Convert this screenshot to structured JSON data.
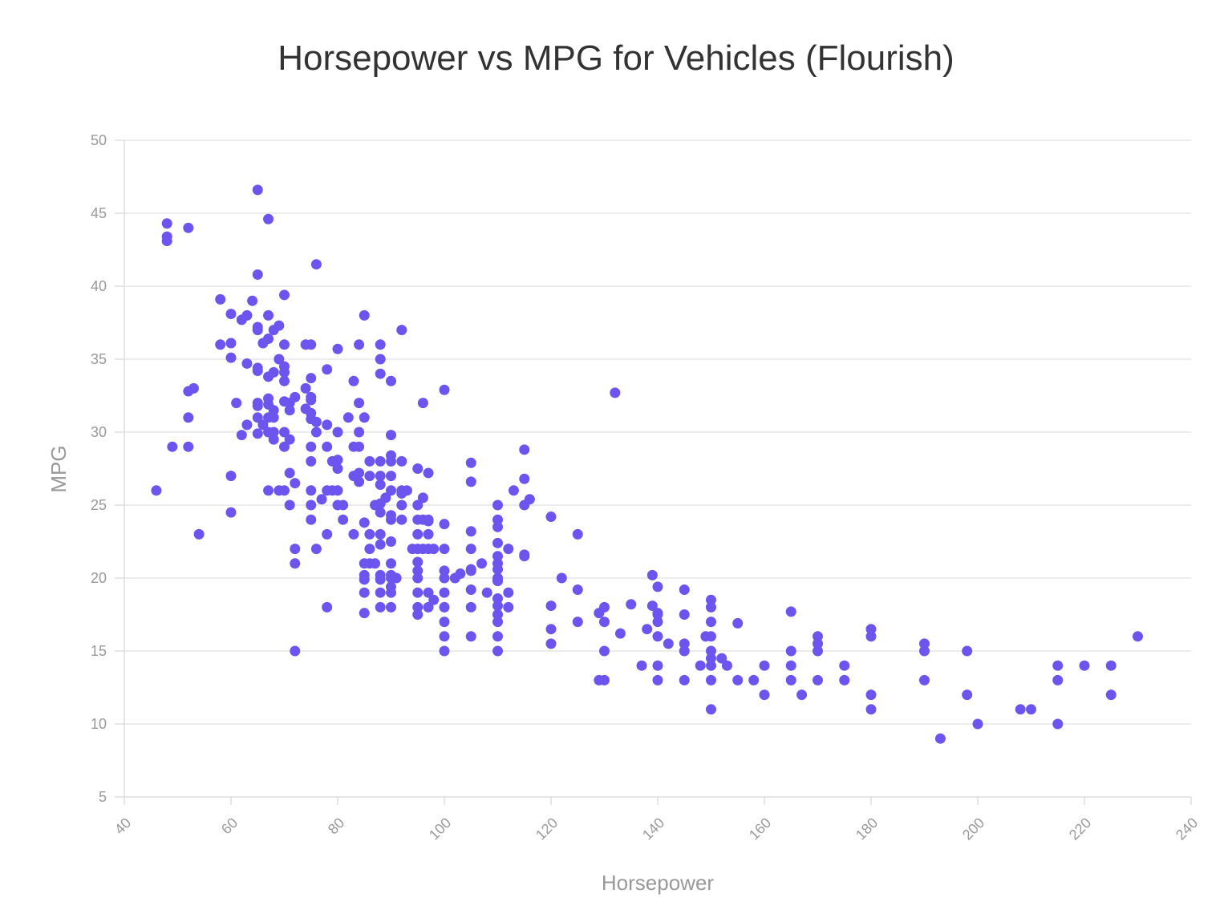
{
  "chart_data": {
    "type": "scatter",
    "title": "Horsepower vs MPG for Vehicles (Flourish)",
    "xlabel": "Horsepower",
    "ylabel": "MPG",
    "xlim": [
      40,
      240
    ],
    "ylim": [
      5,
      50
    ],
    "x_ticks": [
      "40",
      "60",
      "80",
      "100",
      "120",
      "140",
      "160",
      "180",
      "200",
      "220",
      "240"
    ],
    "y_ticks": [
      "5",
      "10",
      "15",
      "20",
      "25",
      "30",
      "35",
      "40",
      "45",
      "50"
    ],
    "grid": "horizontal",
    "marker_color": "#6c55ee",
    "series": [
      {
        "points": [
          [
            46,
            26
          ],
          [
            48,
            44.3
          ],
          [
            48,
            43.4
          ],
          [
            48,
            43.1
          ],
          [
            49,
            29
          ],
          [
            52,
            44
          ],
          [
            52,
            32.8
          ],
          [
            52,
            31
          ],
          [
            52,
            29
          ],
          [
            53,
            33
          ],
          [
            54,
            23
          ],
          [
            58,
            39.1
          ],
          [
            58,
            36
          ],
          [
            60,
            38.1
          ],
          [
            60,
            36.1
          ],
          [
            60,
            35.1
          ],
          [
            60,
            27
          ],
          [
            60,
            24.5
          ],
          [
            61,
            32
          ],
          [
            62,
            37.7
          ],
          [
            62,
            29.8
          ],
          [
            63,
            38
          ],
          [
            63,
            34.7
          ],
          [
            63,
            30.5
          ],
          [
            64,
            39
          ],
          [
            65,
            46.6
          ],
          [
            65,
            40.8
          ],
          [
            65,
            37.2
          ],
          [
            65,
            37
          ],
          [
            65,
            34.4
          ],
          [
            65,
            34.2
          ],
          [
            65,
            32
          ],
          [
            65,
            31.8
          ],
          [
            65,
            31
          ],
          [
            65,
            29.9
          ],
          [
            66,
            36.1
          ],
          [
            66,
            30.5
          ],
          [
            67,
            44.6
          ],
          [
            67,
            38
          ],
          [
            67,
            36.4
          ],
          [
            67,
            33.8
          ],
          [
            67,
            32.3
          ],
          [
            67,
            31.9
          ],
          [
            67,
            31
          ],
          [
            67,
            30
          ],
          [
            67,
            26
          ],
          [
            68,
            37
          ],
          [
            68,
            34.1
          ],
          [
            68,
            31.5
          ],
          [
            68,
            31
          ],
          [
            68,
            30
          ],
          [
            68,
            29.5
          ],
          [
            69,
            37.3
          ],
          [
            69,
            35
          ],
          [
            69,
            26
          ],
          [
            70,
            39.4
          ],
          [
            70,
            36
          ],
          [
            70,
            34.5
          ],
          [
            70,
            34.1
          ],
          [
            70,
            33.5
          ],
          [
            70,
            32.1
          ],
          [
            70,
            30
          ],
          [
            70,
            29
          ],
          [
            70,
            26
          ],
          [
            71,
            32
          ],
          [
            71,
            31.5
          ],
          [
            71,
            29.5
          ],
          [
            71,
            27.2
          ],
          [
            71,
            25
          ],
          [
            72,
            32.4
          ],
          [
            72,
            26.5
          ],
          [
            72,
            22
          ],
          [
            72,
            21
          ],
          [
            72,
            15
          ],
          [
            74,
            36
          ],
          [
            74,
            33
          ],
          [
            74,
            31.6
          ],
          [
            75,
            36
          ],
          [
            75,
            33.7
          ],
          [
            75,
            32.4
          ],
          [
            75,
            32.2
          ],
          [
            75,
            31.3
          ],
          [
            75,
            30.9
          ],
          [
            75,
            29
          ],
          [
            75,
            28
          ],
          [
            75,
            26
          ],
          [
            75,
            25
          ],
          [
            75,
            24
          ],
          [
            76,
            41.5
          ],
          [
            76,
            30.7
          ],
          [
            76,
            30
          ],
          [
            76,
            22
          ],
          [
            77,
            25.4
          ],
          [
            78,
            34.3
          ],
          [
            78,
            30.5
          ],
          [
            78,
            29
          ],
          [
            78,
            26
          ],
          [
            78,
            23
          ],
          [
            78,
            18
          ],
          [
            79,
            28
          ],
          [
            79,
            26
          ],
          [
            80,
            35.7
          ],
          [
            80,
            30
          ],
          [
            80,
            28.1
          ],
          [
            80,
            27.5
          ],
          [
            80,
            26
          ],
          [
            80,
            25
          ],
          [
            81,
            25
          ],
          [
            81,
            24
          ],
          [
            82,
            31
          ],
          [
            83,
            33.5
          ],
          [
            83,
            29
          ],
          [
            83,
            27
          ],
          [
            83,
            23
          ],
          [
            84,
            36
          ],
          [
            84,
            32
          ],
          [
            84,
            30
          ],
          [
            84,
            29
          ],
          [
            84,
            27.2
          ],
          [
            84,
            26.6
          ],
          [
            85,
            38
          ],
          [
            85,
            31
          ],
          [
            85,
            23.8
          ],
          [
            85,
            21
          ],
          [
            85,
            20.2
          ],
          [
            85,
            19.9
          ],
          [
            85,
            19
          ],
          [
            85,
            17.6
          ],
          [
            86,
            28
          ],
          [
            86,
            27
          ],
          [
            86,
            23
          ],
          [
            86,
            22
          ],
          [
            86,
            21
          ],
          [
            87,
            25
          ],
          [
            87,
            21
          ],
          [
            88,
            36
          ],
          [
            88,
            35
          ],
          [
            88,
            34
          ],
          [
            88,
            28
          ],
          [
            88,
            27
          ],
          [
            88,
            26.4
          ],
          [
            88,
            25.1
          ],
          [
            88,
            24.5
          ],
          [
            88,
            23
          ],
          [
            88,
            22.3
          ],
          [
            88,
            20.2
          ],
          [
            88,
            19.9
          ],
          [
            88,
            19
          ],
          [
            88,
            18
          ],
          [
            89,
            25.5
          ],
          [
            90,
            33.5
          ],
          [
            90,
            29.8
          ],
          [
            90,
            28.4
          ],
          [
            90,
            28
          ],
          [
            90,
            27
          ],
          [
            90,
            26
          ],
          [
            90,
            24.3
          ],
          [
            90,
            24
          ],
          [
            90,
            22.5
          ],
          [
            90,
            21
          ],
          [
            90,
            20.2
          ],
          [
            90,
            20
          ],
          [
            90,
            19.4
          ],
          [
            90,
            19
          ],
          [
            90,
            18
          ],
          [
            91,
            20
          ],
          [
            92,
            37
          ],
          [
            92,
            28
          ],
          [
            92,
            26
          ],
          [
            92,
            25.8
          ],
          [
            92,
            25
          ],
          [
            92,
            24
          ],
          [
            93,
            26
          ],
          [
            94,
            22
          ],
          [
            95,
            27.5
          ],
          [
            95,
            25
          ],
          [
            95,
            24
          ],
          [
            95,
            23
          ],
          [
            95,
            22
          ],
          [
            95,
            21.1
          ],
          [
            95,
            20.5
          ],
          [
            95,
            20
          ],
          [
            95,
            19
          ],
          [
            95,
            18
          ],
          [
            95,
            17.5
          ],
          [
            96,
            32
          ],
          [
            96,
            25.5
          ],
          [
            96,
            24
          ],
          [
            96,
            22
          ],
          [
            97,
            27.2
          ],
          [
            97,
            24
          ],
          [
            97,
            23.9
          ],
          [
            97,
            23
          ],
          [
            97,
            22
          ],
          [
            97,
            19
          ],
          [
            97,
            18
          ],
          [
            98,
            22
          ],
          [
            98,
            18.5
          ],
          [
            100,
            32.9
          ],
          [
            100,
            23.7
          ],
          [
            100,
            22
          ],
          [
            100,
            20.5
          ],
          [
            100,
            20
          ],
          [
            100,
            19
          ],
          [
            100,
            18
          ],
          [
            100,
            17
          ],
          [
            100,
            16
          ],
          [
            100,
            15
          ],
          [
            102,
            20
          ],
          [
            103,
            20.3
          ],
          [
            105,
            27.9
          ],
          [
            105,
            26.6
          ],
          [
            105,
            23.2
          ],
          [
            105,
            22
          ],
          [
            105,
            20.6
          ],
          [
            105,
            20.5
          ],
          [
            105,
            19.2
          ],
          [
            105,
            18
          ],
          [
            105,
            16
          ],
          [
            107,
            21
          ],
          [
            108,
            19
          ],
          [
            110,
            25
          ],
          [
            110,
            24
          ],
          [
            110,
            23.5
          ],
          [
            110,
            22.4
          ],
          [
            110,
            21.5
          ],
          [
            110,
            21
          ],
          [
            110,
            20.6
          ],
          [
            110,
            20
          ],
          [
            110,
            19.8
          ],
          [
            110,
            18.6
          ],
          [
            110,
            18.1
          ],
          [
            110,
            17.5
          ],
          [
            110,
            17
          ],
          [
            110,
            16
          ],
          [
            110,
            15
          ],
          [
            112,
            22
          ],
          [
            112,
            19
          ],
          [
            112,
            18
          ],
          [
            113,
            26
          ],
          [
            115,
            28.8
          ],
          [
            115,
            26.8
          ],
          [
            115,
            25
          ],
          [
            115,
            21.6
          ],
          [
            115,
            21.5
          ],
          [
            116,
            25.4
          ],
          [
            120,
            24.2
          ],
          [
            120,
            18.1
          ],
          [
            120,
            16.5
          ],
          [
            120,
            15.5
          ],
          [
            122,
            20
          ],
          [
            125,
            23
          ],
          [
            125,
            19.2
          ],
          [
            125,
            17
          ],
          [
            129,
            17.6
          ],
          [
            129,
            13
          ],
          [
            130,
            18
          ],
          [
            130,
            17
          ],
          [
            130,
            15
          ],
          [
            130,
            13
          ],
          [
            132,
            32.7
          ],
          [
            133,
            16.2
          ],
          [
            135,
            18.2
          ],
          [
            137,
            14
          ],
          [
            138,
            16.5
          ],
          [
            139,
            20.2
          ],
          [
            139,
            18.1
          ],
          [
            140,
            19.4
          ],
          [
            140,
            17.6
          ],
          [
            140,
            17.5
          ],
          [
            140,
            17
          ],
          [
            140,
            16
          ],
          [
            140,
            14
          ],
          [
            140,
            13
          ],
          [
            142,
            15.5
          ],
          [
            145,
            19.2
          ],
          [
            145,
            17.5
          ],
          [
            145,
            15.5
          ],
          [
            145,
            15
          ],
          [
            145,
            13
          ],
          [
            148,
            14
          ],
          [
            149,
            16
          ],
          [
            150,
            18.5
          ],
          [
            150,
            18
          ],
          [
            150,
            17
          ],
          [
            150,
            16
          ],
          [
            150,
            15
          ],
          [
            150,
            14.5
          ],
          [
            150,
            14
          ],
          [
            150,
            13
          ],
          [
            150,
            11
          ],
          [
            152,
            14.5
          ],
          [
            153,
            14
          ],
          [
            155,
            16.9
          ],
          [
            155,
            13
          ],
          [
            158,
            13
          ],
          [
            160,
            14
          ],
          [
            160,
            12
          ],
          [
            165,
            17.7
          ],
          [
            165,
            15
          ],
          [
            165,
            14
          ],
          [
            165,
            13
          ],
          [
            167,
            12
          ],
          [
            170,
            16
          ],
          [
            170,
            15.5
          ],
          [
            170,
            15
          ],
          [
            170,
            13
          ],
          [
            175,
            14
          ],
          [
            175,
            13
          ],
          [
            180,
            16.5
          ],
          [
            180,
            16
          ],
          [
            180,
            12
          ],
          [
            180,
            11
          ],
          [
            190,
            15.5
          ],
          [
            190,
            15
          ],
          [
            190,
            13
          ],
          [
            193,
            9
          ],
          [
            198,
            15
          ],
          [
            198,
            12
          ],
          [
            200,
            10
          ],
          [
            208,
            11
          ],
          [
            210,
            11
          ],
          [
            215,
            14
          ],
          [
            215,
            13
          ],
          [
            215,
            10
          ],
          [
            220,
            14
          ],
          [
            225,
            14
          ],
          [
            225,
            12
          ],
          [
            230,
            16
          ]
        ]
      }
    ]
  }
}
